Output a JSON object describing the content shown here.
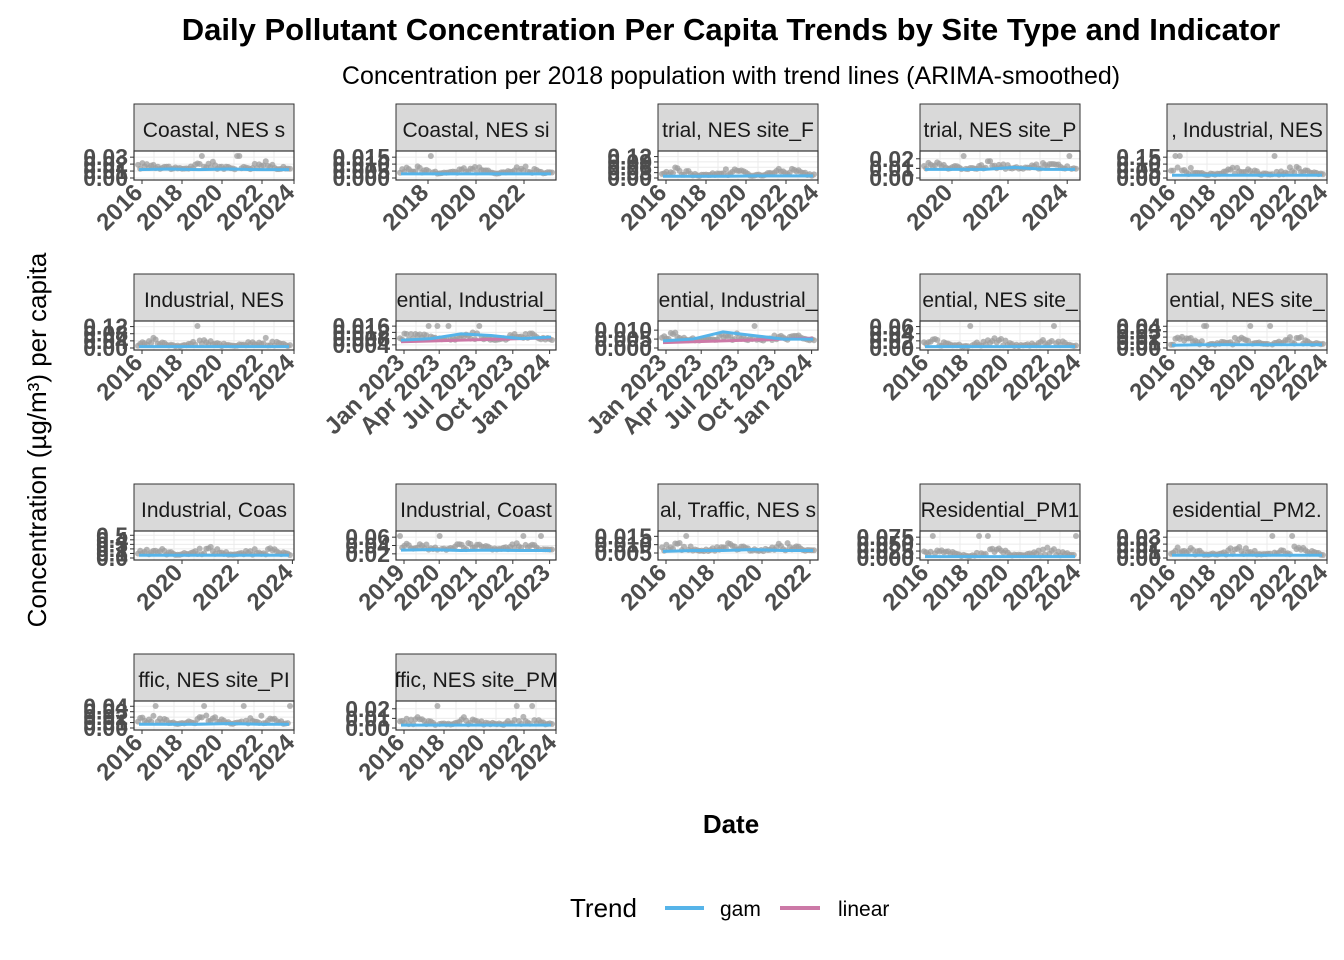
{
  "title": "Daily Pollutant Concentration Per Capita Trends by Site Type and Indicator",
  "subtitle": "Concentration per 2018 population with trend lines (ARIMA-smoothed)",
  "colors": {
    "points": "#9e9e9e",
    "gam": "#56B4E9",
    "linear": "#CC79A7",
    "strip": "#d9d9d9",
    "grid": "#ebebeb",
    "tick_text": "#4d4d4d"
  },
  "chart_data": {
    "type": "scatter",
    "xlabel": "Date",
    "ylabel": "Concentration (µg/m³) per capita",
    "legend": {
      "title": "Trend",
      "position": "bottom",
      "entries": [
        {
          "name": "gam",
          "color": "#56B4E9"
        },
        {
          "name": "linear",
          "color": "#CC79A7"
        }
      ]
    },
    "facets": [
      {
        "strip": "Coastal, NES s",
        "x_ticks": [
          "2016",
          "2018",
          "2020",
          "2022",
          "2024"
        ],
        "x_tick_pos": [
          0.05,
          0.3,
          0.55,
          0.8,
          1.0
        ],
        "y_ticks": [
          "0.00",
          "0.01",
          "0.02",
          "0.03"
        ],
        "y_tick_values": [
          0.0,
          0.01,
          0.02,
          0.03
        ],
        "ylim": [
          0,
          0.036
        ],
        "gam": [
          0.012,
          0.013,
          0.012,
          0.013,
          0.012,
          0.012
        ],
        "linear": []
      },
      {
        "strip": "Coastal, NES si",
        "x_ticks": [
          "2018",
          "2020",
          "2022"
        ],
        "x_tick_pos": [
          0.2,
          0.5,
          0.8
        ],
        "y_ticks": [
          "0.000",
          "0.005",
          "0.010",
          "0.015"
        ],
        "y_tick_values": [
          0.0,
          0.005,
          0.01,
          0.015
        ],
        "ylim": [
          0,
          0.018
        ],
        "gam": [
          0.003,
          0.003,
          0.003,
          0.003,
          0.003,
          0.003
        ],
        "linear": []
      },
      {
        "strip": "trial, NES site_F",
        "x_ticks": [
          "2016",
          "2018",
          "2020",
          "2022",
          "2024"
        ],
        "x_tick_pos": [
          0.05,
          0.3,
          0.55,
          0.8,
          1.0
        ],
        "y_ticks": [
          "0.00",
          "0.03",
          "0.06",
          "0.09",
          "0.12"
        ],
        "y_tick_values": [
          0.0,
          0.03,
          0.06,
          0.09,
          0.12
        ],
        "ylim": [
          0,
          0.14
        ],
        "gam": [
          0.01,
          0.01,
          0.01,
          0.012,
          0.012,
          0.012
        ],
        "linear": []
      },
      {
        "strip": "trial, NES site_P",
        "x_ticks": [
          "2020",
          "2022",
          "2024"
        ],
        "x_tick_pos": [
          0.2,
          0.55,
          0.92
        ],
        "y_ticks": [
          "0.00",
          "0.01",
          "0.02"
        ],
        "y_tick_values": [
          0.0,
          0.01,
          0.02
        ],
        "ylim": [
          0,
          0.026
        ],
        "gam": [
          0.009,
          0.009,
          0.009,
          0.011,
          0.009,
          0.009
        ],
        "linear": []
      },
      {
        "strip": ", Industrial, NES",
        "x_ticks": [
          "2016",
          "2018",
          "2020",
          "2022",
          "2024"
        ],
        "x_tick_pos": [
          0.05,
          0.3,
          0.55,
          0.8,
          1.0
        ],
        "y_ticks": [
          "0.00",
          "0.05",
          "0.10",
          "0.15"
        ],
        "y_tick_values": [
          0.0,
          0.05,
          0.1,
          0.15
        ],
        "ylim": [
          0,
          0.18
        ],
        "gam": [
          0.02,
          0.02,
          0.02,
          0.02,
          0.02,
          0.02
        ],
        "linear": []
      },
      {
        "strip": "Industrial, NES",
        "x_ticks": [
          "2016",
          "2018",
          "2020",
          "2022",
          "2024"
        ],
        "x_tick_pos": [
          0.05,
          0.3,
          0.55,
          0.8,
          1.0
        ],
        "y_ticks": [
          "0.00",
          "0.04",
          "0.08",
          "0.12"
        ],
        "y_tick_values": [
          0.0,
          0.04,
          0.08,
          0.12
        ],
        "ylim": [
          0,
          0.14
        ],
        "gam": [
          0.008,
          0.008,
          0.008,
          0.008,
          0.008,
          0.008
        ],
        "linear": []
      },
      {
        "strip": "ential, Industrial_",
        "x_ticks": [
          "Jan 2023",
          "Apr 2023",
          "Jul 2023",
          "Oct 2023",
          "Jan 2024"
        ],
        "x_tick_pos": [
          0.05,
          0.27,
          0.5,
          0.73,
          0.96
        ],
        "y_ticks": [
          "0.004",
          "0.008",
          "0.012",
          "0.016"
        ],
        "y_tick_values": [
          0.004,
          0.008,
          0.012,
          0.016
        ],
        "ylim": [
          0.002,
          0.018
        ],
        "gam": [
          0.007,
          0.008,
          0.011,
          0.01,
          0.008,
          0.009
        ],
        "linear": [
          0.006,
          0.0065,
          0.007,
          0.0075,
          0.008,
          0.0085
        ]
      },
      {
        "strip": "ential, Industrial_",
        "x_ticks": [
          "Jan 2023",
          "Apr 2023",
          "Jul 2023",
          "Oct 2023",
          "Jan 2024"
        ],
        "x_tick_pos": [
          0.05,
          0.27,
          0.5,
          0.73,
          0.96
        ],
        "y_ticks": [
          "0.000",
          "0.005",
          "0.010"
        ],
        "y_tick_values": [
          0.0,
          0.005,
          0.01
        ],
        "ylim": [
          0,
          0.014
        ],
        "gam": [
          0.004,
          0.005,
          0.009,
          0.007,
          0.005,
          0.005
        ],
        "linear": [
          0.003,
          0.0035,
          0.004,
          0.0045,
          0.005,
          0.0055
        ]
      },
      {
        "strip": "ential, NES site_",
        "x_ticks": [
          "2016",
          "2018",
          "2020",
          "2022",
          "2024"
        ],
        "x_tick_pos": [
          0.05,
          0.3,
          0.55,
          0.8,
          1.0
        ],
        "y_ticks": [
          "0.00",
          "0.02",
          "0.04",
          "0.06"
        ],
        "y_tick_values": [
          0.0,
          0.02,
          0.04,
          0.06
        ],
        "ylim": [
          0,
          0.07
        ],
        "gam": [
          0.004,
          0.004,
          0.004,
          0.004,
          0.004,
          0.004
        ],
        "linear": []
      },
      {
        "strip": "ential, NES site_",
        "x_ticks": [
          "2016",
          "2018",
          "2020",
          "2022",
          "2024"
        ],
        "x_tick_pos": [
          0.05,
          0.3,
          0.55,
          0.8,
          1.0
        ],
        "y_ticks": [
          "0.00",
          "0.01",
          "0.02",
          "0.03",
          "0.04"
        ],
        "y_tick_values": [
          0.0,
          0.01,
          0.02,
          0.03,
          0.04
        ],
        "ylim": [
          0,
          0.046
        ],
        "gam": [
          0.005,
          0.006,
          0.006,
          0.006,
          0.006,
          0.006
        ],
        "linear": []
      },
      {
        "strip": "Industrial, Coas",
        "x_ticks": [
          "2020",
          "2022",
          "2024"
        ],
        "x_tick_pos": [
          0.3,
          0.65,
          0.99
        ],
        "y_ticks": [
          "0.0",
          "0.1",
          "0.2",
          "0.3",
          "0.4",
          "0.5"
        ],
        "y_tick_values": [
          0.0,
          0.1,
          0.2,
          0.3,
          0.4,
          0.5
        ],
        "ylim": [
          0,
          0.55
        ],
        "gam": [
          0.06,
          0.06,
          0.06,
          0.06,
          0.06,
          0.06
        ],
        "linear": []
      },
      {
        "strip": "Industrial, Coast",
        "x_ticks": [
          "2019",
          "2020",
          "2021",
          "2022",
          "2023"
        ],
        "x_tick_pos": [
          0.05,
          0.27,
          0.5,
          0.73,
          0.96
        ],
        "y_ticks": [
          "0.02",
          "0.04",
          "0.06"
        ],
        "y_tick_values": [
          0.02,
          0.04,
          0.06
        ],
        "ylim": [
          0.01,
          0.07
        ],
        "gam": [
          0.029,
          0.03,
          0.028,
          0.029,
          0.028,
          0.028
        ],
        "linear": []
      },
      {
        "strip": "al, Traffic, NES s",
        "x_ticks": [
          "2016",
          "2018",
          "2020",
          "2022"
        ],
        "x_tick_pos": [
          0.05,
          0.35,
          0.65,
          0.95
        ],
        "y_ticks": [
          "0.005",
          "0.010",
          "0.015"
        ],
        "y_tick_values": [
          0.005,
          0.01,
          0.015
        ],
        "ylim": [
          0.002,
          0.017
        ],
        "gam": [
          0.006,
          0.0065,
          0.0065,
          0.007,
          0.0065,
          0.0065
        ],
        "linear": []
      },
      {
        "strip": "Residential_PM1",
        "x_ticks": [
          "2016",
          "2018",
          "2020",
          "2022",
          "2024"
        ],
        "x_tick_pos": [
          0.05,
          0.3,
          0.55,
          0.8,
          1.0
        ],
        "y_ticks": [
          "0.000",
          "0.025",
          "0.050",
          "0.075"
        ],
        "y_tick_values": [
          0.0,
          0.025,
          0.05,
          0.075
        ],
        "ylim": [
          0,
          0.09
        ],
        "gam": [
          0.005,
          0.005,
          0.005,
          0.005,
          0.005,
          0.005
        ],
        "linear": []
      },
      {
        "strip": "esidential_PM2.",
        "x_ticks": [
          "2016",
          "2018",
          "2020",
          "2022",
          "2024"
        ],
        "x_tick_pos": [
          0.05,
          0.3,
          0.55,
          0.8,
          1.0
        ],
        "y_ticks": [
          "0.00",
          "0.01",
          "0.02",
          "0.03"
        ],
        "y_tick_values": [
          0.0,
          0.01,
          0.02,
          0.03
        ],
        "ylim": [
          0,
          0.036
        ],
        "gam": [
          0.004,
          0.004,
          0.004,
          0.004,
          0.004,
          0.004
        ],
        "linear": []
      },
      {
        "strip": "ffic, NES site_PI",
        "x_ticks": [
          "2016",
          "2018",
          "2020",
          "2022",
          "2024"
        ],
        "x_tick_pos": [
          0.05,
          0.3,
          0.55,
          0.8,
          1.0
        ],
        "y_ticks": [
          "0.00",
          "0.01",
          "0.02",
          "0.03",
          "0.04"
        ],
        "y_tick_values": [
          0.0,
          0.01,
          0.02,
          0.03,
          0.04
        ],
        "ylim": [
          0,
          0.046
        ],
        "gam": [
          0.007,
          0.007,
          0.007,
          0.008,
          0.007,
          0.007
        ],
        "linear": []
      },
      {
        "strip": "ffic, NES site_PM",
        "x_ticks": [
          "2016",
          "2018",
          "2020",
          "2022",
          "2024"
        ],
        "x_tick_pos": [
          0.05,
          0.3,
          0.55,
          0.8,
          1.0
        ],
        "y_ticks": [
          "0.00",
          "0.01",
          "0.02"
        ],
        "y_tick_values": [
          0.0,
          0.01,
          0.02
        ],
        "ylim": [
          0,
          0.026
        ],
        "gam": [
          0.003,
          0.003,
          0.003,
          0.003,
          0.003,
          0.003
        ],
        "linear": []
      }
    ]
  }
}
